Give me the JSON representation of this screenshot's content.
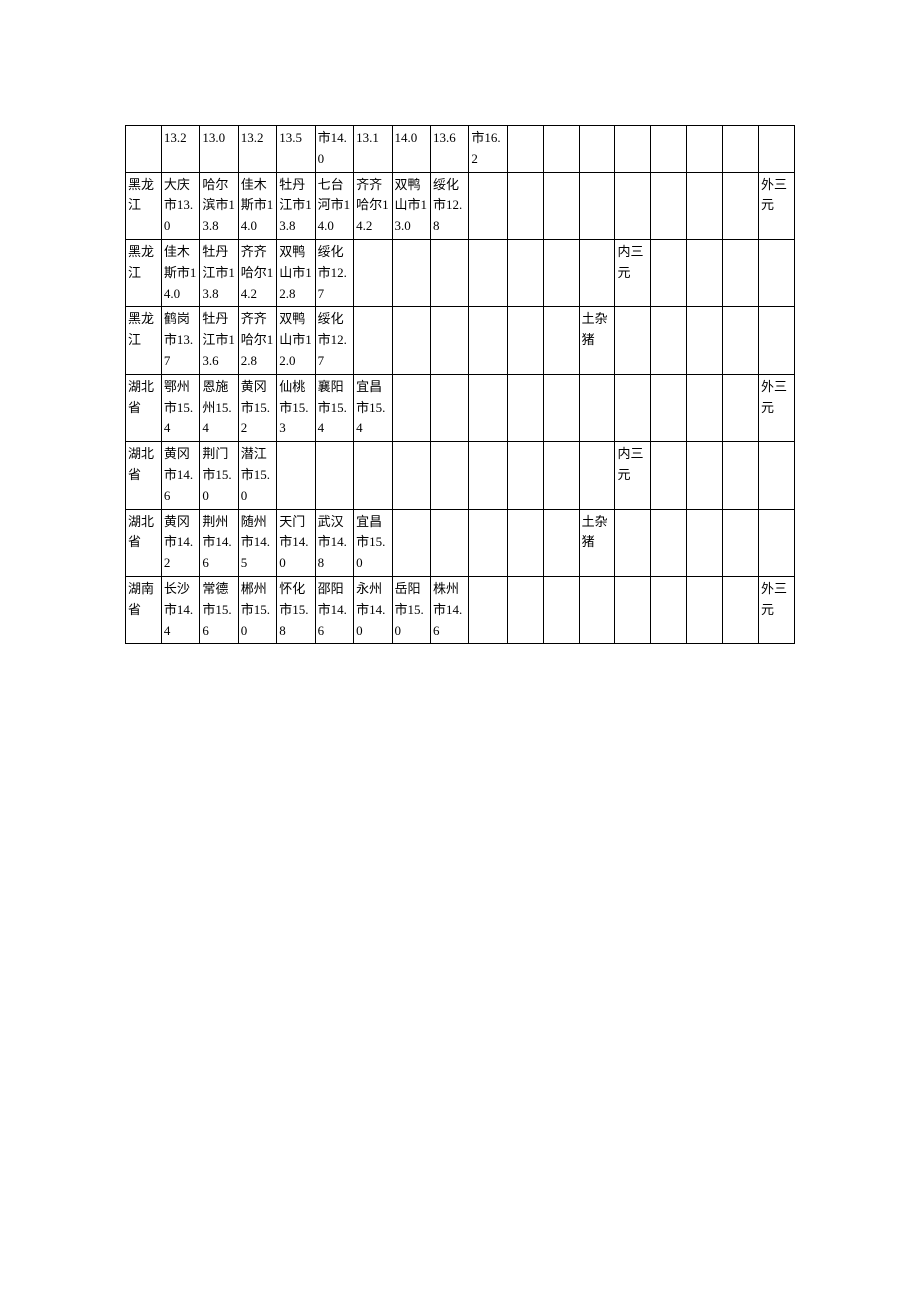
{
  "table": {
    "rows": [
      {
        "province": "",
        "cells": [
          "13.2",
          "13.0",
          "13.2",
          "13.5",
          "市14.0",
          "13.1",
          "14.0",
          "13.6",
          "市16.2",
          "",
          "",
          "",
          "",
          "",
          "",
          "",
          ""
        ],
        "type_col12": "",
        "type_col13": "",
        "type_col17": ""
      },
      {
        "province": "黑龙江",
        "cells": [
          "大庆市13.0",
          "哈尔滨市13.8",
          "佳木斯市14.0",
          "牡丹江市13.8",
          "七台河市14.0",
          "齐齐哈尔14.2",
          "双鸭山市13.0",
          "绥化市12.8",
          "",
          "",
          "",
          "",
          "",
          "",
          "",
          "",
          ""
        ],
        "type_col12": "",
        "type_col13": "",
        "type_col17": "外三元"
      },
      {
        "province": "黑龙江",
        "cells": [
          "佳木斯市14.0",
          "牡丹江市13.8",
          "齐齐哈尔14.2",
          "双鸭山市12.8",
          "绥化市12.7",
          "",
          "",
          "",
          "",
          "",
          "",
          "",
          "",
          "",
          "",
          "",
          ""
        ],
        "type_col12": "",
        "type_col13": "内三元",
        "type_col17": ""
      },
      {
        "province": "黑龙江",
        "cells": [
          "鹤岗市13.7",
          "牡丹江市13.6",
          "齐齐哈尔12.8",
          "双鸭山市12.0",
          "绥化市12.7",
          "",
          "",
          "",
          "",
          "",
          "",
          "",
          "",
          "",
          "",
          "",
          ""
        ],
        "type_col12": "土杂猪",
        "type_col13": "",
        "type_col17": ""
      },
      {
        "province": "湖北省",
        "cells": [
          "鄂州市15.4",
          "恩施州15.4",
          "黄冈市15.2",
          "仙桃市15.3",
          "襄阳市15.4",
          "宜昌市15.4",
          "",
          "",
          "",
          "",
          "",
          "",
          "",
          "",
          "",
          "",
          ""
        ],
        "type_col12": "",
        "type_col13": "",
        "type_col17": "外三元"
      },
      {
        "province": "湖北省",
        "cells": [
          "黄冈市14.6",
          "荆门市15.0",
          "潜江市15.0",
          "",
          "",
          "",
          "",
          "",
          "",
          "",
          "",
          "",
          "",
          "",
          "",
          "",
          ""
        ],
        "type_col12": "",
        "type_col13": "内三元",
        "type_col17": ""
      },
      {
        "province": "湖北省",
        "cells": [
          "黄冈市14.2",
          "荆州市14.6",
          "随州市14.5",
          "天门市14.0",
          "武汉市14.8",
          "宜昌市15.0",
          "",
          "",
          "",
          "",
          "",
          "",
          "",
          "",
          "",
          "",
          ""
        ],
        "type_col12": "土杂猪",
        "type_col13": "",
        "type_col17": ""
      },
      {
        "province": "湖南省",
        "cells": [
          "长沙市14.4",
          "常德市15.6",
          "郴州市15.0",
          "怀化市15.8",
          "邵阳市14.6",
          "永州市14.0",
          "岳阳市15.0",
          "株州市14.6",
          "",
          "",
          "",
          "",
          "",
          "",
          "",
          "",
          ""
        ],
        "type_col12": "",
        "type_col13": "",
        "type_col17": "外三元"
      }
    ],
    "columns": 18
  }
}
